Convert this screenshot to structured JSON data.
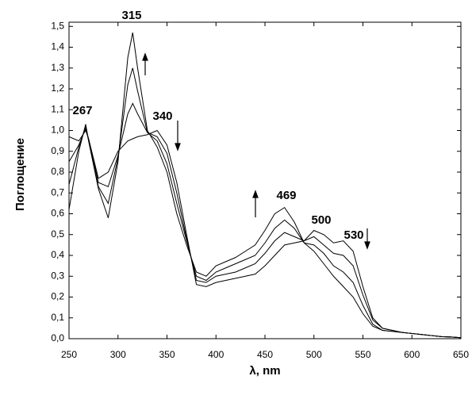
{
  "chart_data": {
    "type": "line",
    "x_label": "λ, nm",
    "y_label": "Поглощение",
    "x": [
      250,
      260,
      267,
      270,
      280,
      290,
      300,
      310,
      315,
      320,
      330,
      340,
      350,
      360,
      370,
      380,
      390,
      400,
      410,
      420,
      430,
      440,
      450,
      460,
      470,
      480,
      490,
      500,
      510,
      520,
      530,
      540,
      550,
      560,
      570,
      580,
      590,
      600,
      610,
      620,
      630,
      640,
      650
    ],
    "series": [
      {
        "color": "#000000",
        "values": [
          0.97,
          0.95,
          1.0,
          0.96,
          0.77,
          0.8,
          0.9,
          0.95,
          0.96,
          0.97,
          0.98,
          1.0,
          0.93,
          0.75,
          0.5,
          0.26,
          0.25,
          0.27,
          0.28,
          0.29,
          0.3,
          0.31,
          0.35,
          0.4,
          0.45,
          0.46,
          0.47,
          0.52,
          0.5,
          0.46,
          0.47,
          0.42,
          0.25,
          0.1,
          0.05,
          0.04,
          0.03,
          0.025,
          0.02,
          0.015,
          0.01,
          0.008,
          0.005
        ]
      },
      {
        "color": "#000000",
        "values": [
          0.85,
          0.93,
          1.01,
          0.96,
          0.75,
          0.73,
          0.88,
          1.08,
          1.13,
          1.08,
          0.99,
          0.97,
          0.89,
          0.7,
          0.48,
          0.28,
          0.27,
          0.3,
          0.31,
          0.32,
          0.34,
          0.36,
          0.41,
          0.47,
          0.51,
          0.49,
          0.47,
          0.49,
          0.45,
          0.41,
          0.4,
          0.35,
          0.21,
          0.09,
          0.05,
          0.04,
          0.03,
          0.025,
          0.02,
          0.015,
          0.01,
          0.008,
          0.005
        ]
      },
      {
        "color": "#000000",
        "values": [
          0.74,
          0.92,
          1.02,
          0.95,
          0.73,
          0.65,
          0.87,
          1.22,
          1.3,
          1.19,
          0.99,
          0.95,
          0.84,
          0.65,
          0.47,
          0.3,
          0.28,
          0.32,
          0.34,
          0.36,
          0.38,
          0.4,
          0.46,
          0.53,
          0.57,
          0.53,
          0.46,
          0.45,
          0.41,
          0.35,
          0.32,
          0.27,
          0.16,
          0.07,
          0.04,
          0.035,
          0.03,
          0.025,
          0.02,
          0.015,
          0.01,
          0.008,
          0.005
        ]
      },
      {
        "color": "#000000",
        "values": [
          0.62,
          0.9,
          1.03,
          0.95,
          0.72,
          0.58,
          0.85,
          1.35,
          1.47,
          1.3,
          1.0,
          0.92,
          0.8,
          0.6,
          0.45,
          0.32,
          0.3,
          0.35,
          0.37,
          0.39,
          0.42,
          0.45,
          0.52,
          0.6,
          0.63,
          0.56,
          0.46,
          0.42,
          0.36,
          0.3,
          0.25,
          0.2,
          0.12,
          0.06,
          0.04,
          0.035,
          0.03,
          0.025,
          0.02,
          0.015,
          0.01,
          0.008,
          0.005
        ]
      }
    ],
    "xlim": [
      250,
      650
    ],
    "xticks": [
      250,
      300,
      350,
      400,
      450,
      500,
      550,
      600,
      650
    ],
    "ylim": [
      0,
      1.52
    ],
    "yticks": [
      {
        "value": 0,
        "label": "0,0"
      },
      {
        "value": 0.1,
        "label": "0,1"
      },
      {
        "value": 0.2,
        "label": "0,2"
      },
      {
        "value": 0.3,
        "label": "0,3"
      },
      {
        "value": 0.4,
        "label": "0,4"
      },
      {
        "value": 0.5,
        "label": "0,5"
      },
      {
        "value": 0.6,
        "label": "0,6"
      },
      {
        "value": 0.7,
        "label": "0,7"
      },
      {
        "value": 0.8,
        "label": "0,8"
      },
      {
        "value": 0.9,
        "label": "0,9"
      },
      {
        "value": 1.0,
        "label": "1,0"
      },
      {
        "value": 1.1,
        "label": "1,1"
      },
      {
        "value": 1.2,
        "label": "1,2"
      },
      {
        "value": 1.3,
        "label": "1,3"
      },
      {
        "value": 1.4,
        "label": "1,4"
      },
      {
        "value": 1.5,
        "label": "1,5"
      }
    ],
    "annotations": [
      "267",
      "315",
      "340",
      "469",
      "500",
      "530"
    ],
    "grid": false
  }
}
